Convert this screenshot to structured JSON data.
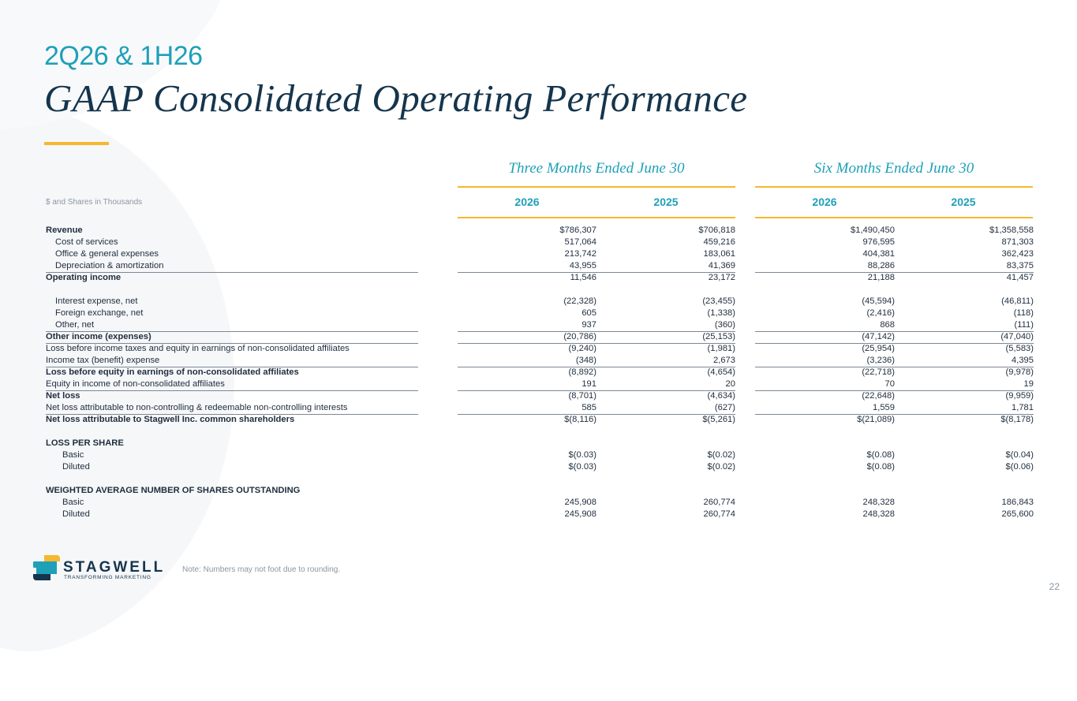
{
  "header": {
    "subtitle": "2Q26 & 1H26",
    "title": "GAAP Consolidated Operating Performance"
  },
  "columns": {
    "period_three": "Three Months Ended June 30",
    "period_six": "Six Months Ended June 30",
    "units_label": "$ and Shares in Thousands",
    "years": [
      "2026",
      "2025",
      "2026",
      "2025"
    ]
  },
  "rows": [
    {
      "label": "Revenue",
      "indent": 0,
      "bold": true,
      "line": false,
      "values": [
        "$786,307",
        "$706,818",
        "$1,490,450",
        "$1,358,558"
      ]
    },
    {
      "label": "Cost of services",
      "indent": 1,
      "bold": false,
      "line": false,
      "values": [
        "517,064",
        "459,216",
        "976,595",
        "871,303"
      ]
    },
    {
      "label": "Office & general expenses",
      "indent": 1,
      "bold": false,
      "line": false,
      "values": [
        "213,742",
        "183,061",
        "404,381",
        "362,423"
      ]
    },
    {
      "label": "Depreciation & amortization",
      "indent": 1,
      "bold": false,
      "line": false,
      "values": [
        "43,955",
        "41,369",
        "88,286",
        "83,375"
      ]
    },
    {
      "label": "Operating income",
      "indent": 0,
      "bold": true,
      "line": true,
      "values": [
        "11,546",
        "23,172",
        "21,188",
        "41,457"
      ]
    },
    {
      "spacer": true
    },
    {
      "label": "Interest expense, net",
      "indent": 1,
      "bold": false,
      "line": false,
      "values": [
        "(22,328)",
        "(23,455)",
        "(45,594)",
        "(46,811)"
      ]
    },
    {
      "label": "Foreign exchange, net",
      "indent": 1,
      "bold": false,
      "line": false,
      "values": [
        "605",
        "(1,338)",
        "(2,416)",
        "(118)"
      ]
    },
    {
      "label": "Other, net",
      "indent": 1,
      "bold": false,
      "line": false,
      "values": [
        "937",
        "(360)",
        "868",
        "(111)"
      ]
    },
    {
      "label": "Other income (expenses)",
      "indent": 0,
      "bold": true,
      "line": true,
      "values": [
        "(20,786)",
        "(25,153)",
        "(47,142)",
        "(47,040)"
      ]
    },
    {
      "label": "Loss before income taxes and equity in earnings of non-consolidated affiliates",
      "indent": 0,
      "bold": false,
      "line": true,
      "values": [
        "(9,240)",
        "(1,981)",
        "(25,954)",
        "(5,583)"
      ]
    },
    {
      "label": "Income tax (benefit) expense",
      "indent": 0,
      "bold": false,
      "line": false,
      "values": [
        "(348)",
        "2,673",
        "(3,236)",
        "4,395"
      ]
    },
    {
      "label": "Loss before equity in earnings of non-consolidated affiliates",
      "indent": 0,
      "bold": true,
      "line": true,
      "values": [
        "(8,892)",
        "(4,654)",
        "(22,718)",
        "(9,978)"
      ]
    },
    {
      "label": "Equity in income of non-consolidated affiliates",
      "indent": 0,
      "bold": false,
      "line": false,
      "values": [
        "191",
        "20",
        "70",
        "19"
      ]
    },
    {
      "label": "Net loss",
      "indent": 0,
      "bold": true,
      "line": true,
      "values": [
        "(8,701)",
        "(4,634)",
        "(22,648)",
        "(9,959)"
      ]
    },
    {
      "label": "Net loss attributable to non-controlling & redeemable non-controlling interests",
      "indent": 0,
      "bold": false,
      "line": false,
      "values": [
        "585",
        "(627)",
        "1,559",
        "1,781"
      ]
    },
    {
      "label": "Net loss attributable to Stagwell Inc. common shareholders",
      "indent": 0,
      "bold": true,
      "line": true,
      "values": [
        "$(8,116)",
        "$(5,261)",
        "$(21,089)",
        "$(8,178)"
      ]
    },
    {
      "spacer": true
    },
    {
      "label": "LOSS  PER SHARE",
      "indent": 0,
      "bold": true,
      "line": false,
      "values": [
        "",
        "",
        "",
        ""
      ]
    },
    {
      "label": "Basic",
      "indent": 2,
      "bold": false,
      "line": false,
      "values": [
        "$(0.03)",
        "$(0.02)",
        "$(0.08)",
        "$(0.04)"
      ]
    },
    {
      "label": "Diluted",
      "indent": 2,
      "bold": false,
      "line": false,
      "values": [
        "$(0.03)",
        "$(0.02)",
        "$(0.08)",
        "$(0.06)"
      ]
    },
    {
      "spacer": true
    },
    {
      "label": "WEIGHTED AVERAGE NUMBER OF SHARES OUTSTANDING",
      "indent": 0,
      "bold": true,
      "line": false,
      "values": [
        "",
        "",
        "",
        ""
      ]
    },
    {
      "label": "Basic",
      "indent": 2,
      "bold": false,
      "line": false,
      "values": [
        "245,908",
        "260,774",
        "248,328",
        "186,843"
      ]
    },
    {
      "label": "Diluted",
      "indent": 2,
      "bold": false,
      "line": false,
      "values": [
        "245,908",
        "260,774",
        "248,328",
        "265,600"
      ]
    }
  ],
  "footer": {
    "logo_word": "STAGWELL",
    "logo_tagline": "TRANSFORMING MARKETING",
    "note": "Note: Numbers may not foot due to rounding.",
    "page_number": "22"
  },
  "colors": {
    "accent_teal": "#1fa0b8",
    "navy": "#15354d",
    "gold": "#f5b82e"
  }
}
